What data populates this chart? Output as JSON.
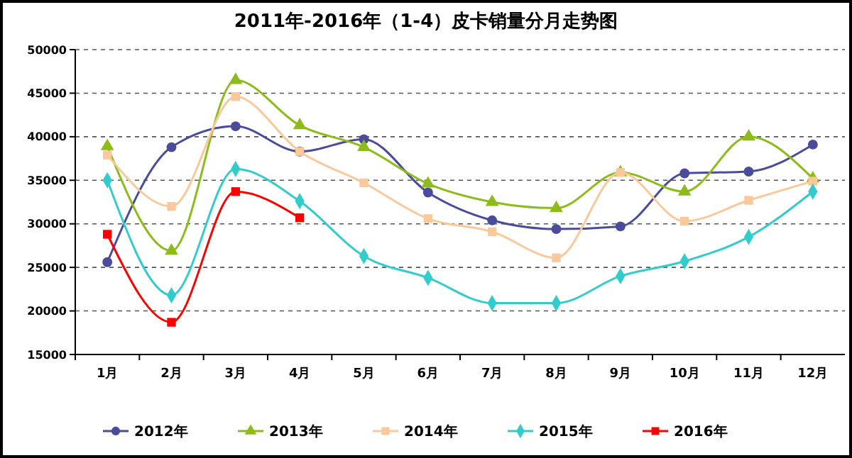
{
  "chart_data": {
    "type": "line",
    "title": "2011年-2016年（1-4）皮卡销量分月走势图",
    "categories": [
      "1月",
      "2月",
      "3月",
      "4月",
      "5月",
      "6月",
      "7月",
      "8月",
      "9月",
      "10月",
      "11月",
      "12月"
    ],
    "ylim": [
      15000,
      50000
    ],
    "yticks": [
      15000,
      20000,
      25000,
      30000,
      35000,
      40000,
      45000,
      50000
    ],
    "grid": "y",
    "legend": "bottom",
    "series": [
      {
        "name": "2012年",
        "color": "#4b4b9b",
        "marker": "circle",
        "values": [
          25600,
          38800,
          41200,
          38300,
          39700,
          33600,
          30400,
          29400,
          29700,
          35800,
          36000,
          39100
        ]
      },
      {
        "name": "2013年",
        "color": "#8dbb1a",
        "marker": "triangle",
        "values": [
          38900,
          26900,
          46500,
          41300,
          38800,
          34600,
          32500,
          31800,
          35900,
          33700,
          40000,
          35200
        ]
      },
      {
        "name": "2014年",
        "color": "#f9c89b",
        "marker": "square",
        "values": [
          37900,
          32000,
          44600,
          38300,
          34700,
          30600,
          29100,
          26100,
          35900,
          30300,
          32700,
          34900
        ]
      },
      {
        "name": "2015年",
        "color": "#33cccc",
        "marker": "diamond",
        "values": [
          35000,
          21800,
          36300,
          32600,
          26300,
          23800,
          20900,
          20900,
          24000,
          25700,
          28500,
          33700
        ]
      },
      {
        "name": "2016年",
        "color": "#ff0000",
        "marker": "square",
        "values": [
          28800,
          18700,
          33700,
          30700,
          null,
          null,
          null,
          null,
          null,
          null,
          null,
          null
        ]
      }
    ]
  }
}
